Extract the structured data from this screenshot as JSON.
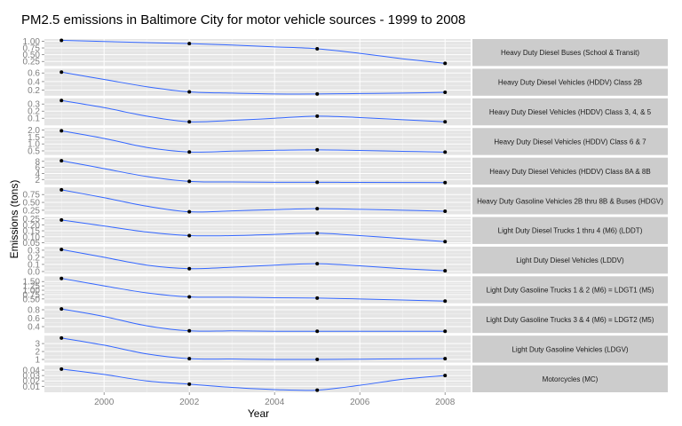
{
  "chart_data": {
    "type": "line",
    "title": "PM2.5 emissions in Baltimore City for motor vehicle sources - 1999 to 2008",
    "xlabel": "Year",
    "ylabel": "Emissions (tons)",
    "x": [
      1999,
      2002,
      2005,
      2008
    ],
    "xlim": [
      1998.6,
      2008.6
    ],
    "x_ticks": [
      2000,
      2002,
      2004,
      2006,
      2008
    ],
    "x_tick_labels": [
      "2000",
      "2002",
      "2004",
      "2006",
      "2008"
    ],
    "grid": true,
    "facet_layout": "rows",
    "strip_position": "right",
    "colors": {
      "line": "#3366ff",
      "point": "#000000",
      "panel_bg": "#e5e5e5",
      "grid_major": "#ffffff",
      "grid_minor": "#f2f2f2",
      "strip_bg": "#cccccc",
      "tick_text": "#7f7f7f"
    },
    "series": [
      {
        "name": "Heavy Duty Diesel Buses (School & Transit)",
        "values": [
          1.03,
          0.91,
          0.72,
          0.18
        ],
        "smooth": [
          1.03,
          0.99,
          0.95,
          0.91,
          0.86,
          0.79,
          0.72,
          0.55,
          0.35,
          0.18
        ],
        "ylim": [
          0.08,
          1.08
        ],
        "y_ticks": [
          0.25,
          0.5,
          0.75,
          1.0
        ],
        "y_tick_labels": [
          "0.25",
          "0.50",
          "0.75",
          "1.00"
        ]
      },
      {
        "name": "Heavy Duty Diesel Vehicles (HDDV) Class 2B",
        "values": [
          0.62,
          0.16,
          0.11,
          0.15
        ],
        "smooth": [
          0.62,
          0.45,
          0.28,
          0.16,
          0.13,
          0.11,
          0.11,
          0.12,
          0.13,
          0.15
        ],
        "ylim": [
          0.07,
          0.7
        ],
        "y_ticks": [
          0.2,
          0.4,
          0.6
        ],
        "y_tick_labels": [
          "0.2",
          "0.4",
          "0.6"
        ]
      },
      {
        "name": "Heavy Duty Diesel Vehicles (HDDV) Class 3, 4, & 5",
        "values": [
          0.35,
          0.05,
          0.13,
          0.05
        ],
        "smooth": [
          0.35,
          0.25,
          0.13,
          0.05,
          0.07,
          0.1,
          0.13,
          0.11,
          0.08,
          0.05
        ],
        "ylim": [
          0.0,
          0.38
        ],
        "y_ticks": [
          0.1,
          0.2,
          0.3
        ],
        "y_tick_labels": [
          "0.1",
          "0.2",
          "0.3"
        ]
      },
      {
        "name": "Heavy Duty Diesel Vehicles (HDDV) Class 6 & 7",
        "values": [
          1.95,
          0.42,
          0.57,
          0.41
        ],
        "smooth": [
          1.95,
          1.4,
          0.75,
          0.42,
          0.48,
          0.54,
          0.57,
          0.53,
          0.47,
          0.41
        ],
        "ylim": [
          0.2,
          2.15
        ],
        "y_ticks": [
          0.5,
          1.0,
          1.5,
          2.0
        ],
        "y_tick_labels": [
          "0.5",
          "1.0",
          "1.5",
          "2.0"
        ]
      },
      {
        "name": "Heavy Duty Diesel Vehicles (HDDV) Class 8A & 8B",
        "values": [
          8.2,
          1.4,
          1.1,
          1.0
        ],
        "smooth": [
          8.2,
          5.6,
          3.0,
          1.4,
          1.2,
          1.1,
          1.1,
          1.05,
          1.02,
          1.0
        ],
        "ylim": [
          0.3,
          9.2
        ],
        "y_ticks": [
          2,
          4,
          6,
          8
        ],
        "y_tick_labels": [
          "2",
          "4",
          "6",
          "8"
        ]
      },
      {
        "name": "Heavy Duty Gasoline Vehicles 2B thru 8B & Buses (HDGV)",
        "values": [
          0.9,
          0.2,
          0.3,
          0.22
        ],
        "smooth": [
          0.9,
          0.65,
          0.38,
          0.2,
          0.23,
          0.27,
          0.3,
          0.28,
          0.25,
          0.22
        ],
        "ylim": [
          0.12,
          0.98
        ],
        "y_ticks": [
          0.25,
          0.5,
          0.75
        ],
        "y_tick_labels": [
          "0.25",
          "0.50",
          "0.75"
        ]
      },
      {
        "name": "Light Duty Diesel Trucks 1 thru 4 (M6) (LDDT)",
        "values": [
          0.24,
          0.11,
          0.13,
          0.06
        ],
        "smooth": [
          0.24,
          0.19,
          0.14,
          0.11,
          0.11,
          0.12,
          0.13,
          0.11,
          0.085,
          0.06
        ],
        "ylim": [
          0.04,
          0.265
        ],
        "y_ticks": [
          0.05,
          0.1,
          0.15,
          0.2,
          0.25
        ],
        "y_tick_labels": [
          "0.05",
          "0.10",
          "0.15",
          "0.20",
          "0.25"
        ]
      },
      {
        "name": "Light Duty Diesel Vehicles (LDDV)",
        "values": [
          0.31,
          0.04,
          0.11,
          0.01
        ],
        "smooth": [
          0.31,
          0.2,
          0.09,
          0.04,
          0.06,
          0.09,
          0.11,
          0.08,
          0.04,
          0.01
        ],
        "ylim": [
          -0.03,
          0.35
        ],
        "y_ticks": [
          0.0,
          0.1,
          0.2,
          0.3
        ],
        "y_tick_labels": [
          "0.0",
          "0.1",
          "0.2",
          "0.3"
        ]
      },
      {
        "name": "Light Duty Gasoline Trucks 1 & 2 (M6) = LDGT1 (M5)",
        "values": [
          1.68,
          0.62,
          0.55,
          0.38
        ],
        "smooth": [
          1.68,
          1.25,
          0.85,
          0.62,
          0.6,
          0.57,
          0.55,
          0.5,
          0.44,
          0.38
        ],
        "ylim": [
          0.25,
          1.8
        ],
        "y_ticks": [
          0.5,
          0.75,
          1.0,
          1.25,
          1.5
        ],
        "y_tick_labels": [
          "0.50",
          "0.75",
          "1.00",
          "1.25",
          "1.50"
        ]
      },
      {
        "name": "Light Duty Gasoline Trucks 3 & 4 (M6) = LDGT2 (M5)",
        "values": [
          0.82,
          0.3,
          0.29,
          0.29
        ],
        "smooth": [
          0.82,
          0.64,
          0.42,
          0.3,
          0.3,
          0.29,
          0.29,
          0.29,
          0.29,
          0.29
        ],
        "ylim": [
          0.25,
          0.89
        ],
        "y_ticks": [
          0.4,
          0.6,
          0.8
        ],
        "y_tick_labels": [
          "0.4",
          "0.6",
          "0.8"
        ]
      },
      {
        "name": "Light Duty Gasoline Vehicles (LDGV)",
        "values": [
          3.7,
          1.1,
          1.0,
          1.1
        ],
        "smooth": [
          3.7,
          2.8,
          1.7,
          1.1,
          1.05,
          1.0,
          1.0,
          1.03,
          1.07,
          1.1
        ],
        "ylim": [
          0.6,
          4.0
        ],
        "y_ticks": [
          1,
          2,
          3
        ],
        "y_tick_labels": [
          "1",
          "2",
          "3"
        ]
      },
      {
        "name": "Motorcycles (MC)",
        "values": [
          0.042,
          0.014,
          0.003,
          0.03
        ],
        "smooth": [
          0.042,
          0.032,
          0.02,
          0.014,
          0.008,
          0.004,
          0.003,
          0.012,
          0.023,
          0.03
        ],
        "ylim": [
          -0.001,
          0.049
        ],
        "y_ticks": [
          0.01,
          0.02,
          0.03,
          0.04
        ],
        "y_tick_labels": [
          "0.01",
          "0.02",
          "0.03",
          "0.04"
        ]
      }
    ]
  }
}
